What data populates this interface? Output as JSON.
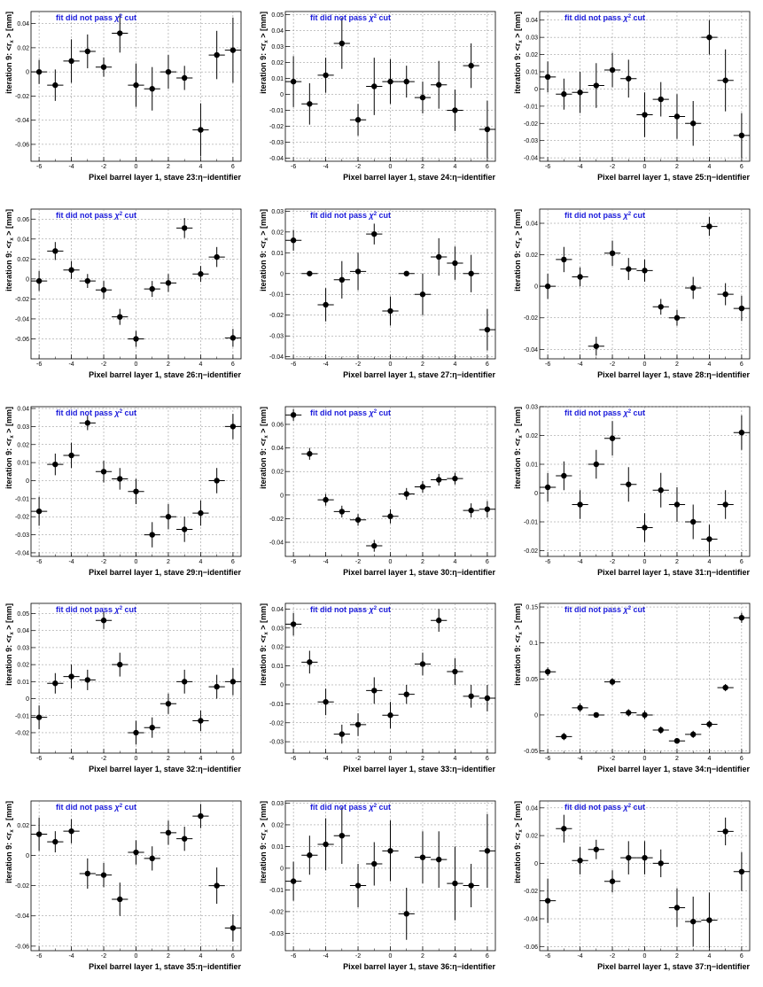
{
  "ui": {
    "note": "fit did not pass",
    "chi": "χ",
    "cut": "cut",
    "ylabel": "iteration 9: <r",
    "ylabel_sub": "x",
    "ylabel_unit": "> [mm]"
  },
  "chart_data": [
    {
      "type": "scatter",
      "title": "",
      "xlabel": "Pixel barrel layer 1, stave 23:η−identifier",
      "ylabel": "iteration 9: <r_x> [mm]",
      "xlim": [
        -6.5,
        6.5
      ],
      "ylim": [
        -0.074,
        0.05
      ],
      "xticks": [
        "-6",
        "-4",
        "-2",
        "0",
        "2",
        "4",
        "6"
      ],
      "yticks": [
        "-0.06",
        "-0.04",
        "-0.02",
        "0",
        "0.02",
        "0.04"
      ],
      "x": [
        -6,
        -5,
        -4,
        -3,
        -2,
        -1,
        0,
        1,
        2,
        3,
        4,
        5,
        6
      ],
      "y": [
        0,
        -0.011,
        0.009,
        0.017,
        0.004,
        0.032,
        -0.011,
        -0.014,
        0,
        -0.005,
        -0.048,
        0.014,
        0.018
      ],
      "yerr": [
        0.01,
        0.013,
        0.018,
        0.014,
        0.008,
        0.016,
        0.018,
        0.018,
        0.014,
        0.01,
        0.022,
        0.02,
        0.027
      ]
    },
    {
      "type": "scatter",
      "title": "",
      "xlabel": "Pixel barrel layer 1, stave 24:η−identifier",
      "ylabel": "iteration 9: <r_x> [mm]",
      "xlim": [
        -6.5,
        6.5
      ],
      "ylim": [
        -0.042,
        0.052
      ],
      "xticks": [
        "-6",
        "-4",
        "-2",
        "0",
        "2",
        "4",
        "6"
      ],
      "yticks": [
        "-0.04",
        "-0.03",
        "-0.02",
        "-0.01",
        "0",
        "0.01",
        "0.02",
        "0.03",
        "0.04",
        "0.05"
      ],
      "x": [
        -6,
        -5,
        -4,
        -3,
        -2,
        -1,
        0,
        1,
        2,
        3,
        4,
        5,
        6
      ],
      "y": [
        0.008,
        -0.006,
        0.012,
        0.032,
        -0.016,
        0.005,
        0.008,
        0.008,
        -0.002,
        0.006,
        -0.01,
        0.018,
        -0.022
      ],
      "yerr": [
        0.016,
        0.013,
        0.011,
        0.016,
        0.01,
        0.018,
        0.014,
        0.01,
        0.01,
        0.015,
        0.013,
        0.014,
        0.018
      ]
    },
    {
      "type": "scatter",
      "title": "",
      "xlabel": "Pixel barrel layer 1, stave 25:η−identifier",
      "ylabel": "iteration 9: <r_x> [mm]",
      "xlim": [
        -6.5,
        6.5
      ],
      "ylim": [
        -0.042,
        0.045
      ],
      "xticks": [
        "-6",
        "-4",
        "-2",
        "0",
        "2",
        "4",
        "6"
      ],
      "yticks": [
        "-0.04",
        "-0.03",
        "-0.02",
        "-0.01",
        "0",
        "0.01",
        "0.02",
        "0.03",
        "0.04"
      ],
      "x": [
        -6,
        -5,
        -4,
        -3,
        -2,
        -1,
        0,
        1,
        2,
        3,
        4,
        5,
        6
      ],
      "y": [
        0.007,
        -0.003,
        -0.002,
        0.002,
        0.011,
        0.006,
        -0.015,
        -0.006,
        -0.016,
        -0.02,
        0.03,
        0.005,
        -0.027
      ],
      "yerr": [
        0.009,
        0.009,
        0.012,
        0.013,
        0.01,
        0.011,
        0.013,
        0.01,
        0.013,
        0.013,
        0.01,
        0.018,
        0.013
      ]
    },
    {
      "type": "scatter",
      "title": "",
      "xlabel": "Pixel barrel layer 1, stave 26:η−identifier",
      "ylabel": "iteration 9: <r_x> [mm]",
      "xlim": [
        -6.5,
        6.5
      ],
      "ylim": [
        -0.08,
        0.07
      ],
      "xticks": [
        "-6",
        "-4",
        "-2",
        "0",
        "2",
        "4",
        "6"
      ],
      "yticks": [
        "-0.06",
        "-0.04",
        "-0.02",
        "0",
        "0.02",
        "0.04",
        "0.06"
      ],
      "x": [
        -6,
        -5,
        -4,
        -3,
        -2,
        -1,
        0,
        1,
        2,
        3,
        4,
        5,
        6
      ],
      "y": [
        -0.002,
        0.028,
        0.009,
        -0.002,
        -0.011,
        -0.038,
        -0.06,
        -0.01,
        -0.004,
        0.051,
        0.005,
        0.022,
        -0.059
      ],
      "yerr": [
        0.01,
        0.009,
        0.009,
        0.007,
        0.009,
        0.008,
        0.008,
        0.008,
        0.009,
        0.01,
        0.008,
        0.01,
        0.009
      ]
    },
    {
      "type": "scatter",
      "title": "",
      "xlabel": "Pixel barrel layer 1, stave 27:η−identifier",
      "ylabel": "iteration 9: <r_x> [mm]",
      "xlim": [
        -6.5,
        6.5
      ],
      "ylim": [
        -0.041,
        0.031
      ],
      "xticks": [
        "-6",
        "-4",
        "-2",
        "0",
        "2",
        "4",
        "6"
      ],
      "yticks": [
        "-0.04",
        "-0.03",
        "-0.02",
        "-0.01",
        "0",
        "0.01",
        "0.02",
        "0.03"
      ],
      "x": [
        -6,
        -5,
        -4,
        -3,
        -2,
        -1,
        0,
        1,
        2,
        3,
        4,
        5,
        6
      ],
      "y": [
        0.016,
        0,
        -0.015,
        -0.003,
        0.001,
        0.019,
        -0.018,
        0,
        -0.01,
        0.008,
        0.005,
        0,
        -0.027
      ],
      "yerr": [
        0.005,
        0,
        0.008,
        0.009,
        0.009,
        0.005,
        0.007,
        0,
        0.01,
        0.009,
        0.008,
        0.009,
        0.01
      ]
    },
    {
      "type": "scatter",
      "title": "",
      "xlabel": "Pixel barrel layer 1, stave 28:η−identifier",
      "ylabel": "iteration 9: <r_x> [mm]",
      "xlim": [
        -6.5,
        6.5
      ],
      "ylim": [
        -0.046,
        0.049
      ],
      "xticks": [
        "-6",
        "-4",
        "-2",
        "0",
        "2",
        "4",
        "6"
      ],
      "yticks": [
        "-0.04",
        "-0.02",
        "0",
        "0.02",
        "0.04"
      ],
      "x": [
        -6,
        -5,
        -4,
        -3,
        -2,
        -1,
        0,
        1,
        2,
        3,
        4,
        5,
        6
      ],
      "y": [
        0,
        0.017,
        0.006,
        -0.038,
        0.021,
        0.011,
        0.01,
        -0.013,
        -0.02,
        -0.001,
        0.038,
        -0.005,
        -0.014
      ],
      "yerr": [
        0.008,
        0.008,
        0.006,
        0.006,
        0.008,
        0.007,
        0.007,
        0.005,
        0.005,
        0.007,
        0.006,
        0.007,
        0.008
      ]
    },
    {
      "type": "scatter",
      "title": "",
      "xlabel": "Pixel barrel layer 1, stave 29:η−identifier",
      "ylabel": "iteration 9: <r_x> [mm]",
      "xlim": [
        -6.5,
        6.5
      ],
      "ylim": [
        -0.042,
        0.041
      ],
      "xticks": [
        "-6",
        "-4",
        "-2",
        "0",
        "2",
        "4",
        "6"
      ],
      "yticks": [
        "-0.04",
        "-0.03",
        "-0.02",
        "-0.01",
        "0",
        "0.01",
        "0.02",
        "0.03",
        "0.04"
      ],
      "x": [
        -6,
        -5,
        -4,
        -3,
        -2,
        -1,
        0,
        1,
        2,
        3,
        4,
        5,
        6
      ],
      "y": [
        -0.017,
        0.009,
        0.014,
        0.032,
        0.005,
        0.001,
        -0.006,
        -0.03,
        -0.02,
        -0.027,
        -0.018,
        0,
        0.03
      ],
      "yerr": [
        0.008,
        0.006,
        0.007,
        0.004,
        0.006,
        0.006,
        0.007,
        0.007,
        0.007,
        0.007,
        0.007,
        0.007,
        0.007
      ]
    },
    {
      "type": "scatter",
      "title": "",
      "xlabel": "Pixel barrel layer 1, stave 30:η−identifier",
      "ylabel": "iteration 9: <r_x> [mm]",
      "xlim": [
        -6.5,
        6.5
      ],
      "ylim": [
        -0.052,
        0.075
      ],
      "xticks": [
        "-6",
        "-4",
        "-2",
        "0",
        "2",
        "4",
        "6"
      ],
      "yticks": [
        "-0.04",
        "-0.02",
        "0",
        "0.02",
        "0.04",
        "0.06"
      ],
      "x": [
        -6,
        -5,
        -4,
        -3,
        -2,
        -1,
        0,
        1,
        2,
        3,
        4,
        5,
        6
      ],
      "y": [
        0.068,
        0.035,
        -0.004,
        -0.014,
        -0.021,
        -0.043,
        -0.018,
        0.001,
        0.007,
        0.013,
        0.014,
        -0.013,
        -0.012
      ],
      "yerr": [
        0.005,
        0.005,
        0.005,
        0.005,
        0.005,
        0.005,
        0.006,
        0.005,
        0.005,
        0.005,
        0.005,
        0.006,
        0.007
      ]
    },
    {
      "type": "scatter",
      "title": "",
      "xlabel": "Pixel barrel layer 1, stave 31:η−identifier",
      "ylabel": "iteration 9: <r_x> [mm]",
      "xlim": [
        -6.5,
        6.5
      ],
      "ylim": [
        -0.022,
        0.03
      ],
      "xticks": [
        "-6",
        "-4",
        "-2",
        "0",
        "2",
        "4",
        "6"
      ],
      "yticks": [
        "-0.02",
        "-0.01",
        "0",
        "0.01",
        "0.02",
        "0.03"
      ],
      "x": [
        -6,
        -5,
        -4,
        -3,
        -2,
        -1,
        0,
        1,
        2,
        3,
        4,
        5,
        6
      ],
      "y": [
        0.002,
        0.006,
        -0.004,
        0.01,
        0.019,
        0.003,
        -0.012,
        0.001,
        -0.004,
        -0.01,
        -0.016,
        -0.004,
        0.021
      ],
      "yerr": [
        0.005,
        0.005,
        0.005,
        0.005,
        0.006,
        0.006,
        0.005,
        0.006,
        0.006,
        0.006,
        0.005,
        0.005,
        0.006
      ]
    },
    {
      "type": "scatter",
      "title": "",
      "xlabel": "Pixel barrel layer 1, stave 32:η−identifier",
      "ylabel": "iteration 9: <r_x> [mm]",
      "xlim": [
        -6.5,
        6.5
      ],
      "ylim": [
        -0.032,
        0.056
      ],
      "xticks": [
        "-6",
        "-4",
        "-2",
        "0",
        "2",
        "4",
        "6"
      ],
      "yticks": [
        "-0.02",
        "-0.01",
        "0",
        "0.01",
        "0.02",
        "0.03",
        "0.04",
        "0.05"
      ],
      "x": [
        -6,
        -5,
        -4,
        -3,
        -2,
        -1,
        0,
        1,
        2,
        3,
        4,
        5,
        6
      ],
      "y": [
        -0.011,
        0.009,
        0.013,
        0.011,
        0.046,
        0.02,
        -0.02,
        -0.017,
        -0.003,
        0.01,
        -0.013,
        0.007,
        0.01
      ],
      "yerr": [
        0.007,
        0.006,
        0.007,
        0.006,
        0.005,
        0.007,
        0.007,
        0.006,
        0.006,
        0.007,
        0.006,
        0.007,
        0.008
      ]
    },
    {
      "type": "scatter",
      "title": "",
      "xlabel": "Pixel barrel layer 1, stave 33:η−identifier",
      "ylabel": "iteration 9: <r_x> [mm]",
      "xlim": [
        -6.5,
        6.5
      ],
      "ylim": [
        -0.036,
        0.043
      ],
      "xticks": [
        "-6",
        "-4",
        "-2",
        "0",
        "2",
        "4",
        "6"
      ],
      "yticks": [
        "-0.03",
        "-0.02",
        "-0.01",
        "0",
        "0.01",
        "0.02",
        "0.03",
        "0.04"
      ],
      "x": [
        -6,
        -5,
        -4,
        -3,
        -2,
        -1,
        0,
        1,
        2,
        3,
        4,
        5,
        6
      ],
      "y": [
        0.032,
        0.012,
        -0.009,
        -0.026,
        -0.021,
        -0.003,
        -0.016,
        -0.005,
        0.011,
        0.034,
        0.007,
        -0.006,
        -0.007
      ],
      "yerr": [
        0.006,
        0.006,
        0.007,
        0.005,
        0.006,
        0.007,
        0.007,
        0.005,
        0.006,
        0.006,
        0.007,
        0.006,
        0.007
      ]
    },
    {
      "type": "scatter",
      "title": "",
      "xlabel": "Pixel barrel layer 1, stave 34:η−identifier",
      "ylabel": "iteration 9: <r_x> [mm]",
      "xlim": [
        -6.5,
        6.5
      ],
      "ylim": [
        -0.053,
        0.155
      ],
      "xticks": [
        "-6",
        "-4",
        "-2",
        "0",
        "2",
        "4",
        "6"
      ],
      "yticks": [
        "-0.05",
        "0",
        "0.05",
        "0.1",
        "0.15"
      ],
      "x": [
        -6,
        -5,
        -4,
        -3,
        -2,
        -1,
        0,
        1,
        2,
        3,
        4,
        5,
        6
      ],
      "y": [
        0.06,
        -0.03,
        0.01,
        0,
        0.046,
        0.003,
        0,
        -0.021,
        -0.036,
        -0.027,
        -0.013,
        0.038,
        0.135
      ],
      "yerr": [
        0.006,
        0.005,
        0.006,
        0,
        0.005,
        0.005,
        0.006,
        0.005,
        0.004,
        0.005,
        0.005,
        0.005,
        0.007
      ]
    },
    {
      "type": "scatter",
      "title": "",
      "xlabel": "Pixel barrel layer 1, stave 35:η−identifier",
      "ylabel": "iteration 9: <r_x> [mm]",
      "xlim": [
        -6.5,
        6.5
      ],
      "ylim": [
        -0.063,
        0.036
      ],
      "xticks": [
        "-6",
        "-4",
        "-2",
        "0",
        "2",
        "4",
        "6"
      ],
      "yticks": [
        "-0.06",
        "-0.04",
        "-0.02",
        "0",
        "0.02"
      ],
      "x": [
        -6,
        -5,
        -4,
        -3,
        -2,
        -1,
        0,
        1,
        2,
        3,
        4,
        5,
        6
      ],
      "y": [
        0.014,
        0.009,
        0.016,
        -0.012,
        -0.013,
        -0.029,
        0.002,
        -0.002,
        0.015,
        0.011,
        0.026,
        -0.02,
        -0.048
      ],
      "yerr": [
        0.011,
        0.007,
        0.008,
        0.01,
        0.008,
        0.011,
        0.008,
        0.008,
        0.008,
        0.008,
        0.008,
        0.012,
        0.009
      ]
    },
    {
      "type": "scatter",
      "title": "",
      "xlabel": "Pixel barrel layer 1, stave 36:η−identifier",
      "ylabel": "iteration 9: <r_x> [mm]",
      "xlim": [
        -6.5,
        6.5
      ],
      "ylim": [
        -0.038,
        0.031
      ],
      "xticks": [
        "-6",
        "-4",
        "-2",
        "0",
        "2",
        "4",
        "6"
      ],
      "yticks": [
        "-0.03",
        "-0.02",
        "-0.01",
        "0",
        "0.01",
        "0.02",
        "0.03"
      ],
      "x": [
        -6,
        -5,
        -4,
        -3,
        -2,
        -1,
        0,
        1,
        2,
        3,
        4,
        5,
        6
      ],
      "y": [
        -0.006,
        0.006,
        0.011,
        0.015,
        -0.008,
        0.002,
        0.008,
        -0.021,
        0.005,
        0.004,
        -0.007,
        -0.008,
        0.008
      ],
      "yerr": [
        0.009,
        0.009,
        0.012,
        0.013,
        0.01,
        0.01,
        0.014,
        0.012,
        0.012,
        0.013,
        0.017,
        0.01,
        0.017
      ]
    },
    {
      "type": "scatter",
      "title": "",
      "xlabel": "Pixel barrel layer 1, stave 37:η−identifier",
      "ylabel": "iteration 9: <r_x> [mm]",
      "xlim": [
        -6.5,
        6.5
      ],
      "ylim": [
        -0.063,
        0.045
      ],
      "xticks": [
        "-6",
        "-4",
        "-2",
        "0",
        "2",
        "4",
        "6"
      ],
      "yticks": [
        "-0.06",
        "-0.04",
        "-0.02",
        "0",
        "0.02",
        "0.04"
      ],
      "x": [
        -6,
        -5,
        -4,
        -3,
        -2,
        -1,
        0,
        1,
        2,
        3,
        4,
        5,
        6
      ],
      "y": [
        -0.027,
        0.025,
        0.002,
        0.01,
        -0.013,
        0.004,
        0.004,
        0,
        -0.032,
        -0.042,
        -0.041,
        0.023,
        -0.006
      ],
      "yerr": [
        0.016,
        0.01,
        0.01,
        0.007,
        0.008,
        0.012,
        0.012,
        0.01,
        0.014,
        0.018,
        0.02,
        0.01,
        0.014
      ]
    }
  ]
}
